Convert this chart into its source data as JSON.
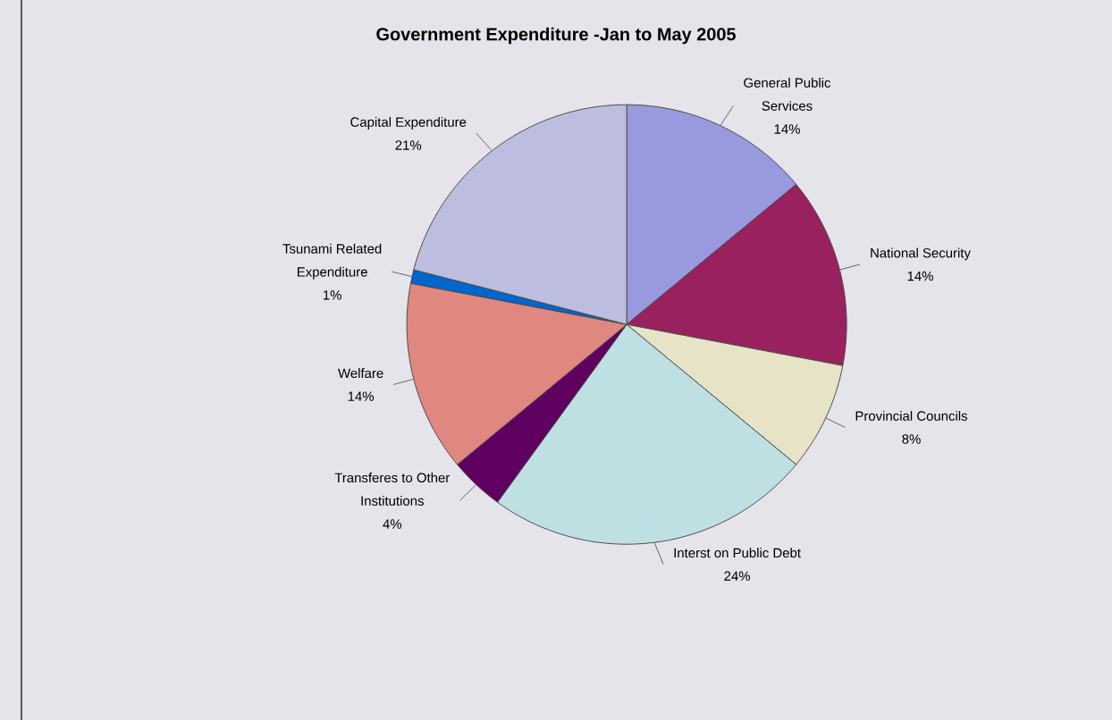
{
  "chart_data": {
    "type": "pie",
    "title": "Government Expenditure -Jan to May 2005",
    "categories": [
      "General Public Services",
      "National Security",
      "Provincial Councils",
      "Interst on Public Debt",
      "Transferes to Other Institutions",
      "Welfare",
      "Tsunami Related Expenditure",
      "Capital Expenditure"
    ],
    "values": [
      14,
      14,
      8,
      24,
      4,
      14,
      1,
      21
    ],
    "value_labels": [
      "14%",
      "14%",
      "8%",
      "24%",
      "4%",
      "14%",
      "1%",
      "21%"
    ],
    "colors": [
      "#9999e0",
      "#99215e",
      "#e6e3c6",
      "#bfe0e3",
      "#600060",
      "#e0877f",
      "#0066cc",
      "#bdbddf"
    ]
  }
}
